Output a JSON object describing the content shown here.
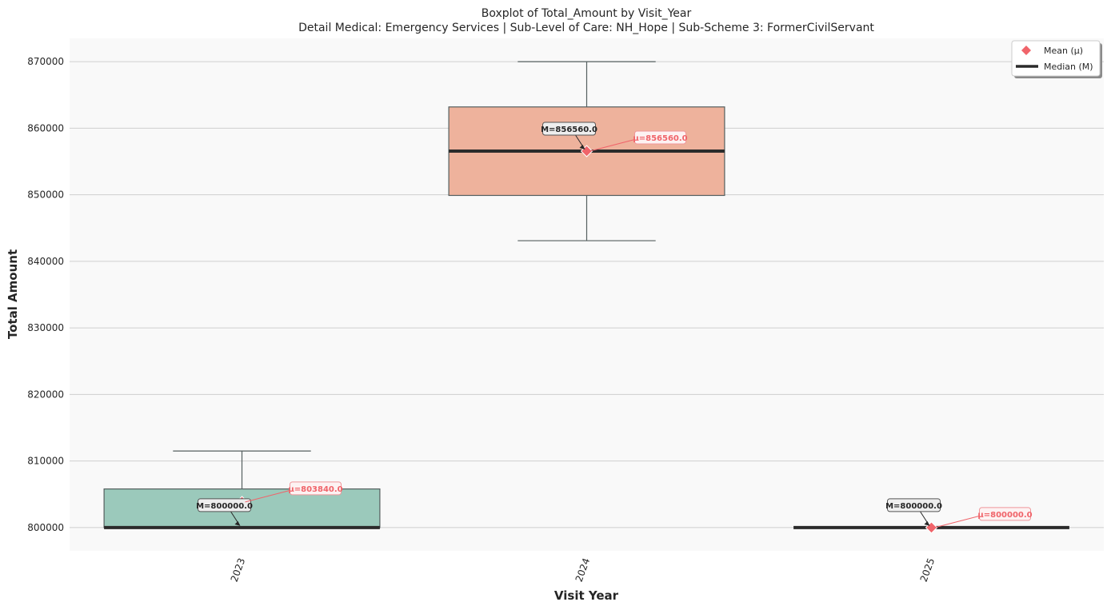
{
  "chart_data": {
    "type": "box",
    "title": "Boxplot of Total_Amount by Visit_Year",
    "subtitle": "Detail Medical: Emergency Services | Sub-Level of Care: NH_Hope | Sub-Scheme 3: FormerCivilServant",
    "xlabel": "Visit Year",
    "ylabel": "Total Amount",
    "ylim": [
      796500,
      873500
    ],
    "yticks": [
      800000,
      810000,
      820000,
      830000,
      840000,
      850000,
      860000,
      870000
    ],
    "grid": true,
    "legend_position": "top-right",
    "legend": [
      {
        "label": "Mean (μ)",
        "marker": "diamond",
        "color": "#f0646a"
      },
      {
        "label": "Median (M)",
        "marker": "line",
        "color": "#2b2b2b"
      }
    ],
    "categories": [
      "2023",
      "2024",
      "2025"
    ],
    "boxes": [
      {
        "category": "2023",
        "whisker_low": 800000,
        "q1": 800000,
        "median": 800000,
        "q3": 805800,
        "whisker_high": 811500,
        "mean": 803840,
        "color": "#9bc9bb",
        "median_label": "M=800000.0",
        "mean_label": "μ=803840.0"
      },
      {
        "category": "2024",
        "whisker_low": 843100,
        "q1": 849900,
        "median": 856560,
        "q3": 863200,
        "whisker_high": 870000,
        "mean": 856560,
        "color": "#eeb29c",
        "median_label": "M=856560.0",
        "mean_label": "μ=856560.0"
      },
      {
        "category": "2025",
        "whisker_low": 800000,
        "q1": 800000,
        "median": 800000,
        "q3": 800000,
        "whisker_high": 800000,
        "mean": 800000,
        "color": "#eeb29c",
        "median_label": "M=800000.0",
        "mean_label": "μ=800000.0"
      }
    ]
  }
}
